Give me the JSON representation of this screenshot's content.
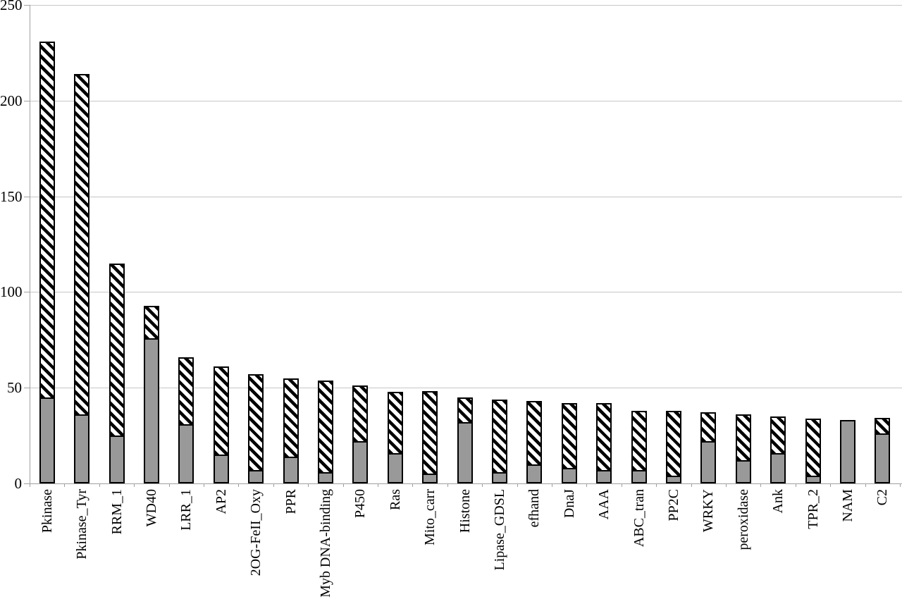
{
  "chart_data": {
    "type": "bar",
    "stacked": true,
    "title": "",
    "xlabel": "",
    "ylabel": "",
    "ylim": [
      0,
      250
    ],
    "yticks": [
      0,
      50,
      100,
      150,
      200,
      250
    ],
    "grid": "horizontal",
    "legend": "none",
    "categories": [
      "Pkinase",
      "Pkinase_Tyr",
      "RRM_1",
      "WD40",
      "LRR_1",
      "AP2",
      "2OG-FeII_Oxy",
      "PPR",
      "Myb DNA-binding",
      "P450",
      "Ras",
      "Mito_carr",
      "Histone",
      "Lipase_GDSL",
      "efhand",
      "DnaJ",
      "AAA",
      "ABC_tran",
      "PP2C",
      "WRKY",
      "peroxidase",
      "Ank",
      "TPR_2",
      "NAM",
      "C2"
    ],
    "series": [
      {
        "name": "solid-gray-segment",
        "style": "solid",
        "color": "#999999",
        "values": [
          45,
          36,
          25,
          76,
          31,
          15,
          7,
          14,
          6,
          22,
          16,
          5,
          32,
          6,
          10,
          8,
          7,
          7,
          4,
          22,
          12,
          16,
          4,
          33,
          26
        ]
      },
      {
        "name": "hatched-segment",
        "style": "diagonal-hatch",
        "color": "#000000",
        "values": [
          186,
          178,
          90,
          17,
          35,
          46,
          50,
          41,
          48,
          29,
          32,
          43,
          13,
          38,
          33,
          34,
          35,
          31,
          34,
          15,
          24,
          19,
          30,
          0,
          8
        ]
      }
    ],
    "totals": [
      231,
      214,
      115,
      93,
      66,
      61,
      57,
      55,
      54,
      51,
      48,
      48,
      45,
      44,
      43,
      42,
      42,
      38,
      38,
      37,
      36,
      35,
      34,
      33,
      34
    ],
    "colors": {
      "bar_fill": "#999999",
      "bar_border": "#000000",
      "hatch_foreground": "#000000",
      "hatch_background": "#ffffff",
      "gridline": "#c6c6c6",
      "axis": "#a0a0a0",
      "text": "#000000",
      "background": "#ffffff"
    }
  }
}
